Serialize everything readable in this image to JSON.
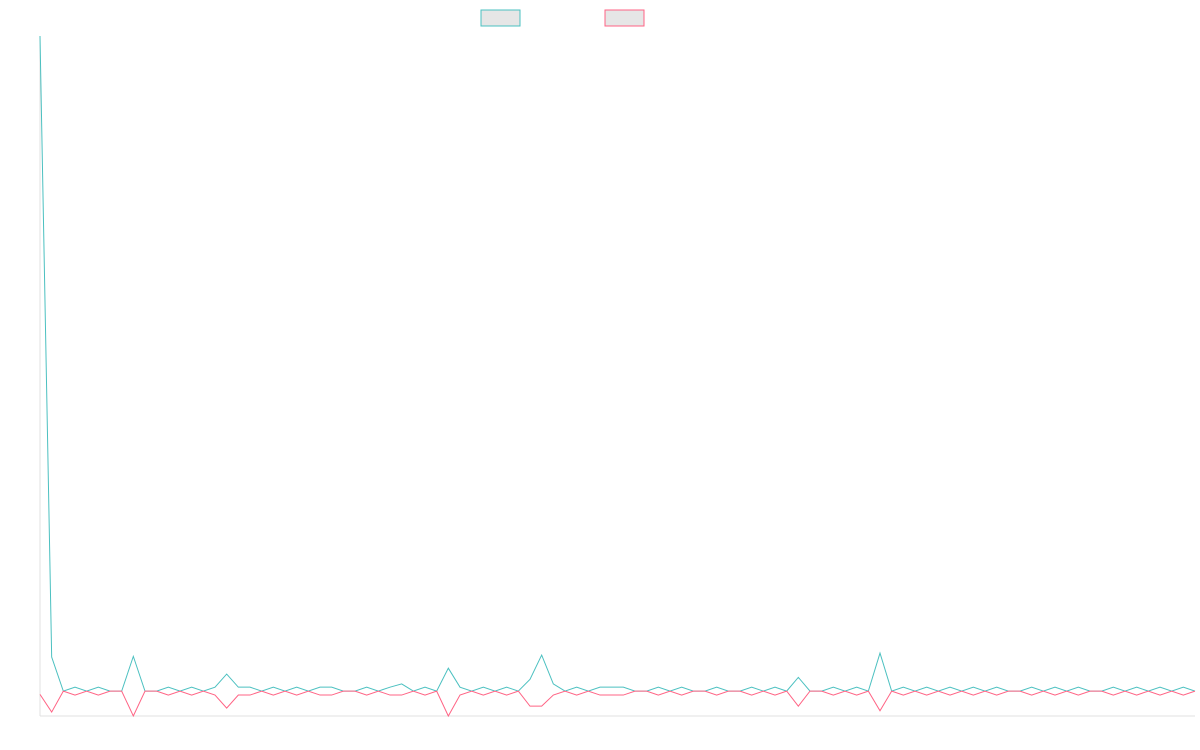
{
  "chart_data": {
    "type": "line",
    "ylim": [
      -3.8,
      100
    ],
    "series": [
      {
        "color": "#4bc0c0",
        "values": [
          100,
          5.2,
          0,
          0.6,
          0,
          0.6,
          0,
          0,
          5.3,
          0,
          0,
          0.6,
          0,
          0.6,
          0,
          0.6,
          2.6,
          0.6,
          0.6,
          0,
          0.6,
          0,
          0.6,
          0,
          0.6,
          0.6,
          0,
          0,
          0.6,
          0,
          0.6,
          1.1,
          0,
          0.6,
          0,
          3.5,
          0.6,
          0,
          0.6,
          0,
          0.6,
          0,
          1.8,
          5.5,
          1.1,
          0,
          0.6,
          0,
          0.6,
          0.6,
          0.6,
          0,
          0,
          0.6,
          0,
          0.6,
          0,
          0,
          0.6,
          0,
          0,
          0.6,
          0,
          0.6,
          0,
          2.1,
          0,
          0,
          0.6,
          0,
          0.6,
          0,
          5.8,
          0,
          0.6,
          0,
          0.6,
          0,
          0.6,
          0,
          0.6,
          0,
          0.6,
          0,
          0,
          0.6,
          0,
          0.6,
          0,
          0.6,
          0,
          0,
          0.6,
          0,
          0.6,
          0,
          0.6,
          0,
          0.6,
          0
        ]
      },
      {
        "color": "#ff6384",
        "values": [
          -0.5,
          -3.2,
          0,
          -0.6,
          0,
          -0.6,
          0,
          0,
          -3.8,
          0,
          0,
          -0.6,
          0,
          -0.6,
          0,
          -0.6,
          -2.6,
          -0.6,
          -0.6,
          0,
          -0.6,
          0,
          -0.6,
          0,
          -0.6,
          -0.6,
          0,
          0,
          -0.6,
          0,
          -0.6,
          -0.6,
          0,
          -0.6,
          0,
          -3.8,
          -0.6,
          0,
          -0.6,
          0,
          -0.6,
          0,
          -2.3,
          -2.3,
          -0.6,
          0,
          -0.6,
          0,
          -0.6,
          -0.6,
          -0.6,
          0,
          0,
          -0.6,
          0,
          -0.6,
          0,
          0,
          -0.6,
          0,
          0,
          -0.6,
          0,
          -0.6,
          0,
          -2.3,
          0,
          0,
          -0.6,
          0,
          -0.6,
          0,
          -3,
          0,
          -0.6,
          0,
          -0.6,
          0,
          -0.6,
          0,
          -0.6,
          0,
          -0.6,
          0,
          0,
          -0.6,
          0,
          -0.6,
          0,
          -0.6,
          0,
          0,
          -0.6,
          0,
          -0.6,
          0,
          -0.6,
          0,
          -0.6,
          0
        ]
      }
    ]
  }
}
